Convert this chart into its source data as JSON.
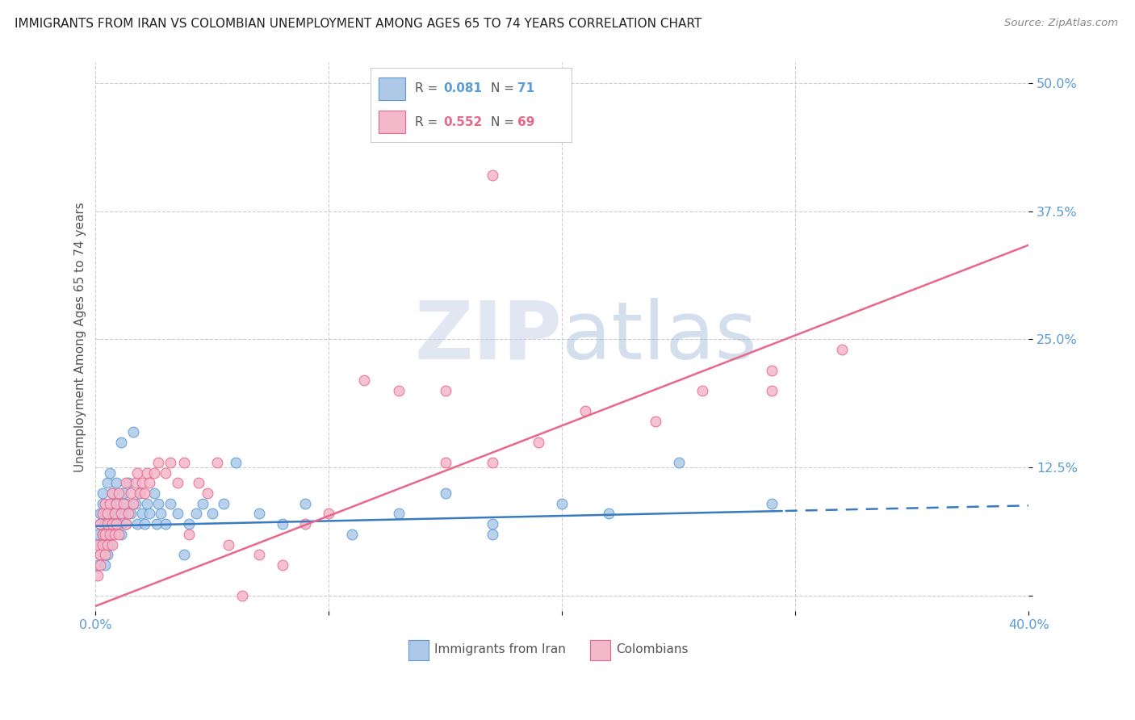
{
  "title": "IMMIGRANTS FROM IRAN VS COLOMBIAN UNEMPLOYMENT AMONG AGES 65 TO 74 YEARS CORRELATION CHART",
  "source": "Source: ZipAtlas.com",
  "ylabel": "Unemployment Among Ages 65 to 74 years",
  "legend_label1": "Immigrants from Iran",
  "legend_label2": "Colombians",
  "color_iran_fill": "#aec9e8",
  "color_iran_edge": "#5b9bd5",
  "color_colombia_fill": "#f4b8cb",
  "color_colombia_edge": "#e8678a",
  "color_iran_line": "#3a7abf",
  "color_colombia_line": "#e8678a",
  "watermark_color": "#d5dff0",
  "background_color": "#ffffff",
  "xlim": [
    0.0,
    0.4
  ],
  "ylim": [
    -0.015,
    0.52
  ],
  "yticks": [
    0.0,
    0.125,
    0.25,
    0.375,
    0.5
  ],
  "ytick_labels": [
    "",
    "12.5%",
    "25.0%",
    "37.5%",
    "50.0%"
  ],
  "xticks": [
    0.0,
    0.1,
    0.2,
    0.3,
    0.4
  ],
  "xtick_labels": [
    "0.0%",
    "",
    "",
    "",
    "40.0%"
  ],
  "iran_line_solid_end": 0.295,
  "iran_line_intercept": 0.068,
  "iran_line_slope": 0.05,
  "colombia_line_intercept": -0.01,
  "colombia_line_slope": 0.88,
  "iran_pts_x": [
    0.001,
    0.001,
    0.002,
    0.002,
    0.002,
    0.002,
    0.003,
    0.003,
    0.003,
    0.004,
    0.004,
    0.004,
    0.004,
    0.005,
    0.005,
    0.005,
    0.006,
    0.006,
    0.006,
    0.006,
    0.007,
    0.007,
    0.007,
    0.008,
    0.008,
    0.009,
    0.009,
    0.01,
    0.01,
    0.011,
    0.011,
    0.012,
    0.012,
    0.013,
    0.013,
    0.014,
    0.015,
    0.016,
    0.017,
    0.018,
    0.019,
    0.02,
    0.021,
    0.022,
    0.023,
    0.025,
    0.026,
    0.027,
    0.028,
    0.03,
    0.032,
    0.035,
    0.038,
    0.04,
    0.043,
    0.046,
    0.05,
    0.055,
    0.06,
    0.07,
    0.08,
    0.09,
    0.11,
    0.13,
    0.15,
    0.17,
    0.2,
    0.22,
    0.25,
    0.17,
    0.29
  ],
  "iran_pts_y": [
    0.06,
    0.03,
    0.08,
    0.05,
    0.04,
    0.07,
    0.09,
    0.06,
    0.1,
    0.05,
    0.08,
    0.07,
    0.03,
    0.11,
    0.06,
    0.04,
    0.09,
    0.07,
    0.05,
    0.12,
    0.08,
    0.06,
    0.1,
    0.09,
    0.07,
    0.08,
    0.11,
    0.07,
    0.09,
    0.06,
    0.15,
    0.08,
    0.1,
    0.09,
    0.07,
    0.11,
    0.08,
    0.16,
    0.09,
    0.07,
    0.1,
    0.08,
    0.07,
    0.09,
    0.08,
    0.1,
    0.07,
    0.09,
    0.08,
    0.07,
    0.09,
    0.08,
    0.04,
    0.07,
    0.08,
    0.09,
    0.08,
    0.09,
    0.13,
    0.08,
    0.07,
    0.09,
    0.06,
    0.08,
    0.1,
    0.07,
    0.09,
    0.08,
    0.13,
    0.06,
    0.09
  ],
  "col_pts_x": [
    0.001,
    0.001,
    0.002,
    0.002,
    0.002,
    0.003,
    0.003,
    0.003,
    0.004,
    0.004,
    0.004,
    0.005,
    0.005,
    0.005,
    0.006,
    0.006,
    0.007,
    0.007,
    0.007,
    0.008,
    0.008,
    0.009,
    0.009,
    0.01,
    0.01,
    0.011,
    0.012,
    0.013,
    0.013,
    0.014,
    0.015,
    0.016,
    0.017,
    0.018,
    0.019,
    0.02,
    0.021,
    0.022,
    0.023,
    0.025,
    0.027,
    0.03,
    0.032,
    0.035,
    0.038,
    0.04,
    0.044,
    0.048,
    0.052,
    0.057,
    0.063,
    0.07,
    0.08,
    0.09,
    0.1,
    0.115,
    0.13,
    0.15,
    0.17,
    0.13,
    0.15,
    0.17,
    0.19,
    0.21,
    0.24,
    0.26,
    0.29,
    0.32,
    0.29
  ],
  "col_pts_y": [
    0.05,
    0.02,
    0.07,
    0.04,
    0.03,
    0.06,
    0.08,
    0.05,
    0.09,
    0.06,
    0.04,
    0.08,
    0.05,
    0.07,
    0.09,
    0.06,
    0.1,
    0.07,
    0.05,
    0.08,
    0.06,
    0.09,
    0.07,
    0.1,
    0.06,
    0.08,
    0.09,
    0.07,
    0.11,
    0.08,
    0.1,
    0.09,
    0.11,
    0.12,
    0.1,
    0.11,
    0.1,
    0.12,
    0.11,
    0.12,
    0.13,
    0.12,
    0.13,
    0.11,
    0.13,
    0.06,
    0.11,
    0.1,
    0.13,
    0.05,
    0.0,
    0.04,
    0.03,
    0.07,
    0.08,
    0.21,
    0.46,
    0.2,
    0.13,
    0.2,
    0.13,
    0.41,
    0.15,
    0.18,
    0.17,
    0.2,
    0.22,
    0.24,
    0.2
  ]
}
